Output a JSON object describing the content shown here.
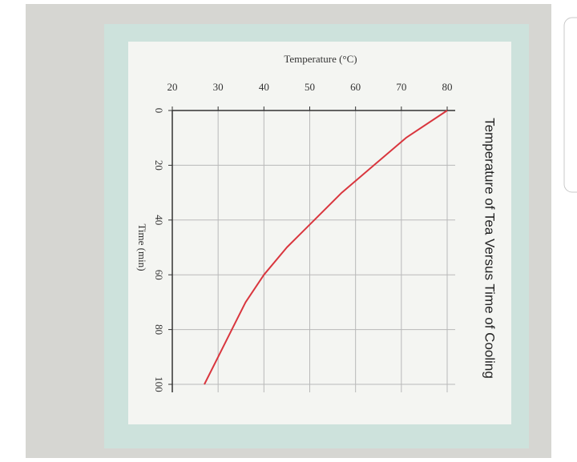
{
  "chart_data": {
    "type": "line",
    "title": "Temperature of Tea Versus Time of Cooling",
    "x_label": "Time (min)",
    "y_label": "Temperature (°C)",
    "x": [
      0,
      10,
      20,
      30,
      40,
      50,
      60,
      70,
      80,
      90,
      100
    ],
    "series": [
      {
        "name": "Temperature",
        "color": "#d9363e",
        "values": [
          80,
          71,
          64,
          57,
          51,
          45,
          40,
          36,
          33,
          30,
          27
        ]
      }
    ],
    "xlim": [
      0,
      100
    ],
    "xticks": [
      0,
      20,
      40,
      60,
      80,
      100
    ],
    "ylim": [
      20,
      80
    ],
    "yticks": [
      20,
      30,
      40,
      50,
      60,
      70,
      80
    ],
    "grid": true
  }
}
